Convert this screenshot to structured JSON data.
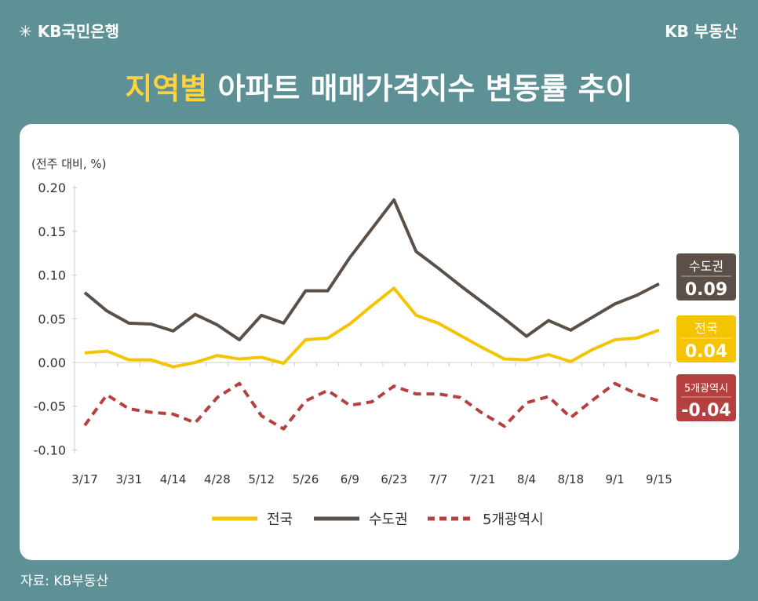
{
  "header": {
    "logo": "✳ KB국민은행",
    "brand": "KB 부동산",
    "title_highlight": "지역별",
    "title_rest": " 아파트 매매가격지수 변동률 추이"
  },
  "source": "자료: KB부동산",
  "chart_data": {
    "type": "line",
    "ylabel": "(전주 대비, %)",
    "ylim": [
      -0.1,
      0.2
    ],
    "yticks": [
      "0.20",
      "0.15",
      "0.10",
      "0.05",
      "0.00",
      "-0.05",
      "-0.10"
    ],
    "ytick_values": [
      0.2,
      0.15,
      0.1,
      0.05,
      0.0,
      -0.05,
      -0.1
    ],
    "x": [
      "3/17",
      "3/24",
      "3/31",
      "4/7",
      "4/14",
      "4/21",
      "4/28",
      "5/5",
      "5/12",
      "5/19",
      "5/26",
      "6/2",
      "6/9",
      "6/16",
      "6/23",
      "6/30",
      "7/7",
      "7/14",
      "7/21",
      "7/28",
      "8/4",
      "8/11",
      "8/18",
      "8/25",
      "9/1",
      "9/8",
      "9/15"
    ],
    "xtick_labels": [
      "3/17",
      "3/31",
      "4/14",
      "4/28",
      "5/12",
      "5/26",
      "6/9",
      "6/23",
      "7/7",
      "7/21",
      "8/4",
      "8/18",
      "9/1",
      "9/15"
    ],
    "series": [
      {
        "name": "전국",
        "color": "#f5c400",
        "dashed": false,
        "end_label": "0.04",
        "values": [
          0.011,
          0.013,
          0.003,
          0.003,
          -0.005,
          0.0,
          0.008,
          0.004,
          0.006,
          -0.001,
          0.026,
          0.028,
          0.044,
          0.065,
          0.085,
          0.054,
          0.045,
          0.031,
          0.017,
          0.004,
          0.003,
          0.009,
          0.001,
          0.015,
          0.026,
          0.028,
          0.037
        ]
      },
      {
        "name": "수도권",
        "color": "#5a5048",
        "dashed": false,
        "end_label": "0.09",
        "values": [
          0.08,
          0.059,
          0.045,
          0.044,
          0.036,
          0.055,
          0.043,
          0.026,
          0.054,
          0.045,
          0.082,
          0.082,
          0.12,
          0.153,
          0.186,
          0.127,
          0.108,
          0.088,
          0.069,
          0.05,
          0.03,
          0.048,
          0.037,
          0.052,
          0.067,
          0.077,
          0.09
        ]
      },
      {
        "name": "5개광역시",
        "color": "#b5403f",
        "dashed": true,
        "end_label": "-0.04",
        "values": [
          -0.072,
          -0.037,
          -0.053,
          -0.057,
          -0.059,
          -0.069,
          -0.04,
          -0.024,
          -0.061,
          -0.076,
          -0.044,
          -0.032,
          -0.049,
          -0.045,
          -0.027,
          -0.036,
          -0.036,
          -0.04,
          -0.058,
          -0.073,
          -0.046,
          -0.039,
          -0.063,
          -0.043,
          -0.024,
          -0.036,
          -0.044
        ]
      }
    ],
    "legend": "bottom"
  }
}
